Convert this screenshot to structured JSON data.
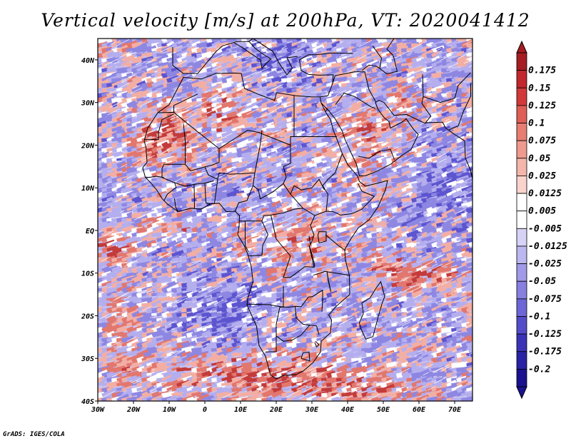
{
  "title": "Vertical velocity [m/s] at 200hPa, VT: 2020041412",
  "credit": "GrADS: IGES/COLA",
  "map": {
    "projection": "latlon",
    "lon_range": [
      -30,
      75
    ],
    "lat_range": [
      -40,
      45
    ],
    "lon_ticks": [
      {
        "value": -30,
        "label": "30W"
      },
      {
        "value": -20,
        "label": "20W"
      },
      {
        "value": -10,
        "label": "10W"
      },
      {
        "value": 0,
        "label": "0"
      },
      {
        "value": 10,
        "label": "10E"
      },
      {
        "value": 20,
        "label": "20E"
      },
      {
        "value": 30,
        "label": "30E"
      },
      {
        "value": 40,
        "label": "40E"
      },
      {
        "value": 50,
        "label": "50E"
      },
      {
        "value": 60,
        "label": "60E"
      },
      {
        "value": 70,
        "label": "70E"
      }
    ],
    "lat_ticks": [
      {
        "value": 40,
        "label": "40N"
      },
      {
        "value": 30,
        "label": "30N"
      },
      {
        "value": 20,
        "label": "20N"
      },
      {
        "value": 10,
        "label": "10N"
      },
      {
        "value": 0,
        "label": "EQ"
      },
      {
        "value": -10,
        "label": "10S"
      },
      {
        "value": -20,
        "label": "20S"
      },
      {
        "value": -30,
        "label": "30S"
      },
      {
        "value": -40,
        "label": "40S"
      }
    ],
    "features": [
      "Africa",
      "Arabian Peninsula",
      "Madagascar",
      "Mediterranean",
      "country borders"
    ]
  },
  "colorbar": {
    "levels": [
      "0.175",
      "0.15",
      "0.125",
      "0.1",
      "0.075",
      "0.05",
      "0.025",
      "0.0125",
      "0.005",
      "-0.005",
      "-0.0125",
      "-0.025",
      "-0.05",
      "-0.075",
      "-0.1",
      "-0.125",
      "-0.175",
      "-0.2"
    ],
    "colors": [
      "#a51c22",
      "#c1272d",
      "#d23a3a",
      "#df5e55",
      "#e87d72",
      "#ef9a8f",
      "#f4b5ab",
      "#f9d3cc",
      "#ffffff",
      "#ffffff",
      "#d6d3f7",
      "#bcb7f0",
      "#a19ae8",
      "#8780e0",
      "#6d66d6",
      "#534cc9",
      "#3a33b8",
      "#2a22a4",
      "#1a1290"
    ],
    "top_color": "#a51c22",
    "bottom_color": "#1a1290"
  }
}
